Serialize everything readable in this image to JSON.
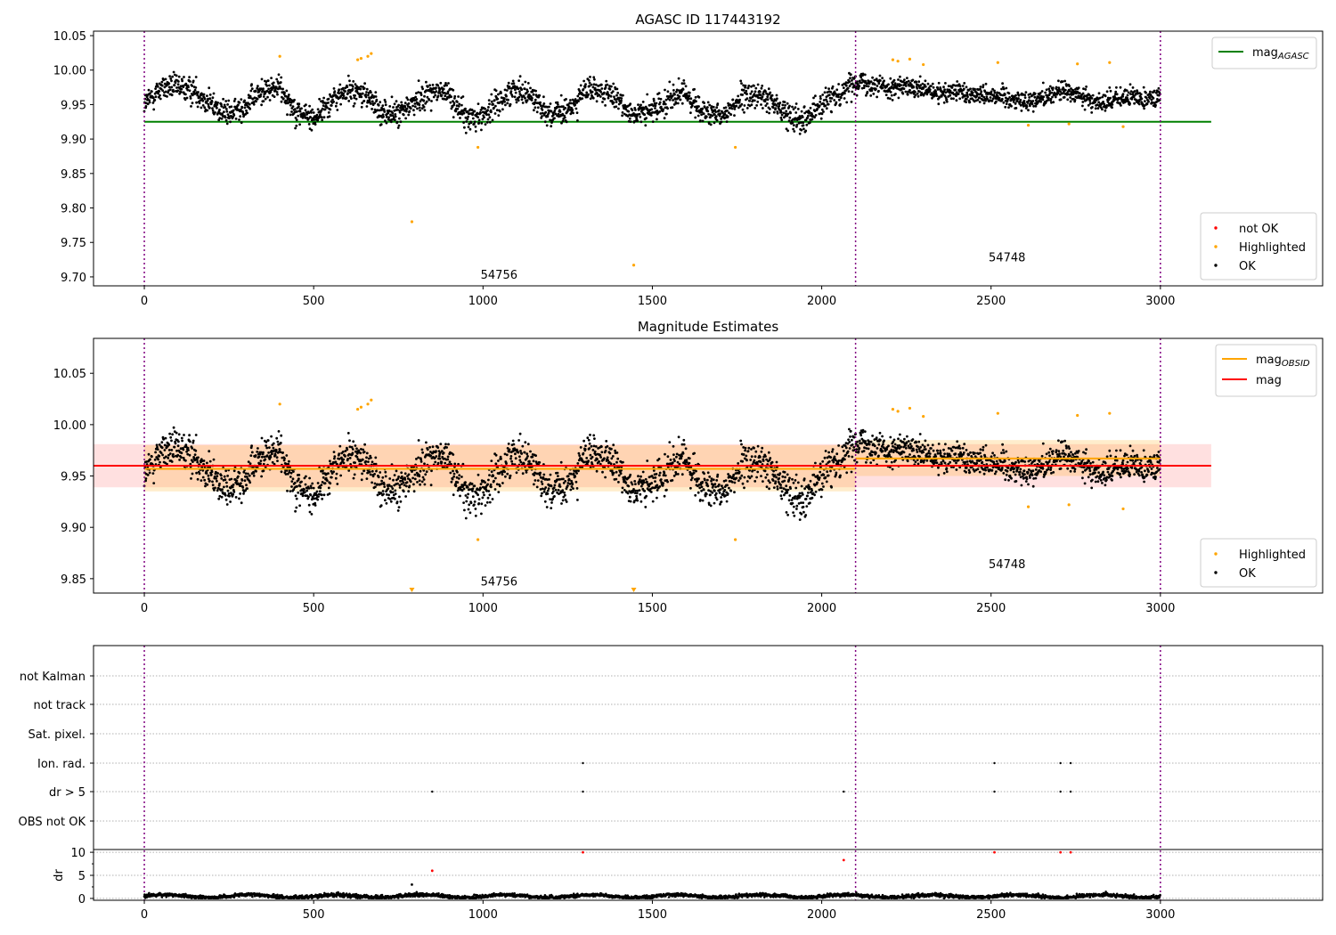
{
  "chart_data": [
    {
      "type": "scatter",
      "title": "AGASC ID 117443192",
      "xlim": [
        -150,
        3479
      ],
      "ylim": [
        9.687,
        10.0565
      ],
      "xticks": [
        0,
        500,
        1000,
        1500,
        2000,
        2500,
        3000
      ],
      "yticks": [
        9.7,
        9.75,
        9.8,
        9.85,
        9.9,
        9.95,
        10.0,
        10.05
      ],
      "obs_boundaries": [
        0,
        2100,
        3000
      ],
      "obs_labels": [
        {
          "text": "54756",
          "x": 1000,
          "y": 9.7
        },
        {
          "text": "54748",
          "x": 2500,
          "y": 9.725
        }
      ],
      "mag_agasc": {
        "value": 9.925,
        "x_range": [
          0,
          3150
        ],
        "color": "#008000"
      },
      "legend_lines": [
        {
          "label": "mag",
          "sub": "AGASC",
          "color": "#008000"
        }
      ],
      "legend_points": [
        {
          "label": "not OK",
          "color": "#ff0000"
        },
        {
          "label": "Highlighted",
          "color": "#ffa500"
        },
        {
          "label": "OK",
          "color": "#000000"
        }
      ]
    },
    {
      "type": "scatter",
      "title": "Magnitude Estimates",
      "xlim": [
        -150,
        3479
      ],
      "ylim": [
        9.836,
        10.084
      ],
      "xticks": [
        0,
        500,
        1000,
        1500,
        2000,
        2500,
        3000
      ],
      "yticks": [
        9.85,
        9.9,
        9.95,
        10.0,
        10.05
      ],
      "obs_labels": [
        {
          "text": "54756",
          "x": 1000,
          "y": 9.845
        },
        {
          "text": "54748",
          "x": 2500,
          "y": 9.862
        }
      ],
      "mag": {
        "value": 9.96,
        "band": [
          9.939,
          9.981
        ],
        "x_range": [
          -150,
          3150
        ],
        "color": "#ff0000"
      },
      "mag_obsid": [
        {
          "x_range": [
            0,
            2100
          ],
          "value": 9.957,
          "band": [
            9.935,
            9.98
          ]
        },
        {
          "x_range": [
            2100,
            3000
          ],
          "value": 9.967,
          "band": [
            9.95,
            9.985
          ]
        }
      ],
      "legend_lines": [
        {
          "label": "mag",
          "sub": "OBSID",
          "color": "#ffa500"
        },
        {
          "label": "mag",
          "sub": "",
          "color": "#ff0000"
        }
      ],
      "legend_points": [
        {
          "label": "Highlighted",
          "color": "#ffa500"
        },
        {
          "label": "OK",
          "color": "#000000"
        }
      ]
    },
    {
      "type": "scatter",
      "categories": [
        "not Kalman",
        "not track",
        "Sat. pixel.",
        "Ion. rad.",
        "dr > 5",
        "OBS not OK"
      ],
      "flag_points": {
        "Ion. rad.": [
          1295,
          2510,
          2705,
          2735
        ],
        "dr > 5": [
          850,
          1295,
          2065,
          2510,
          2705,
          2735
        ]
      },
      "dr_ylabel": "dr",
      "dr_yticks": [
        0,
        5,
        10
      ],
      "dr_ylim": [
        -0.4,
        10.6
      ],
      "dr_baseline": 0.5,
      "dr_outliers": [
        {
          "x": 790,
          "dr": 3.0,
          "color": "#000000"
        },
        {
          "x": 850,
          "dr": 6.0,
          "color": "#ff0000"
        },
        {
          "x": 1295,
          "dr": 10,
          "color": "#ff0000"
        },
        {
          "x": 2065,
          "dr": 8.3,
          "color": "#ff0000"
        },
        {
          "x": 2510,
          "dr": 10,
          "color": "#ff0000"
        },
        {
          "x": 2705,
          "dr": 10,
          "color": "#ff0000"
        },
        {
          "x": 2735,
          "dr": 10,
          "color": "#ff0000"
        }
      ],
      "xticks": [
        0,
        500,
        1000,
        1500,
        2000,
        2500,
        3000
      ]
    }
  ],
  "series": {
    "n_points": 3000,
    "trend_step": 50,
    "trend": [
      9.95,
      9.975,
      9.975,
      9.97,
      9.95,
      9.935,
      9.95,
      9.97,
      9.975,
      9.94,
      9.93,
      9.955,
      9.97,
      9.965,
      9.94,
      9.935,
      9.955,
      9.97,
      9.965,
      9.93,
      9.935,
      9.955,
      9.975,
      9.96,
      9.935,
      9.94,
      9.97,
      9.97,
      9.955,
      9.935,
      9.94,
      9.96,
      9.965,
      9.94,
      9.93,
      9.955,
      9.965,
      9.955,
      9.935,
      9.93,
      9.95,
      9.965,
      9.985,
      9.98,
      9.975,
      9.975,
      9.97,
      9.965,
      9.97,
      9.965,
      9.965,
      9.96,
      9.955,
      9.96,
      9.97,
      9.965,
      9.955,
      9.955,
      9.96,
      9.96,
      9.962
    ],
    "noise": 0.013,
    "highlighted": [
      [
        400,
        10.02
      ],
      [
        630,
        10.015
      ],
      [
        640,
        10.017
      ],
      [
        660,
        10.02
      ],
      [
        670,
        10.024
      ],
      [
        790,
        9.78
      ],
      [
        985,
        9.888
      ],
      [
        1445,
        9.717
      ],
      [
        1745,
        9.888
      ],
      [
        2210,
        10.015
      ],
      [
        2225,
        10.013
      ],
      [
        2260,
        10.016
      ],
      [
        2300,
        10.008
      ],
      [
        2520,
        10.011
      ],
      [
        2610,
        9.92
      ],
      [
        2730,
        9.922
      ],
      [
        2755,
        10.009
      ],
      [
        2850,
        10.011
      ],
      [
        2890,
        9.918
      ]
    ]
  }
}
